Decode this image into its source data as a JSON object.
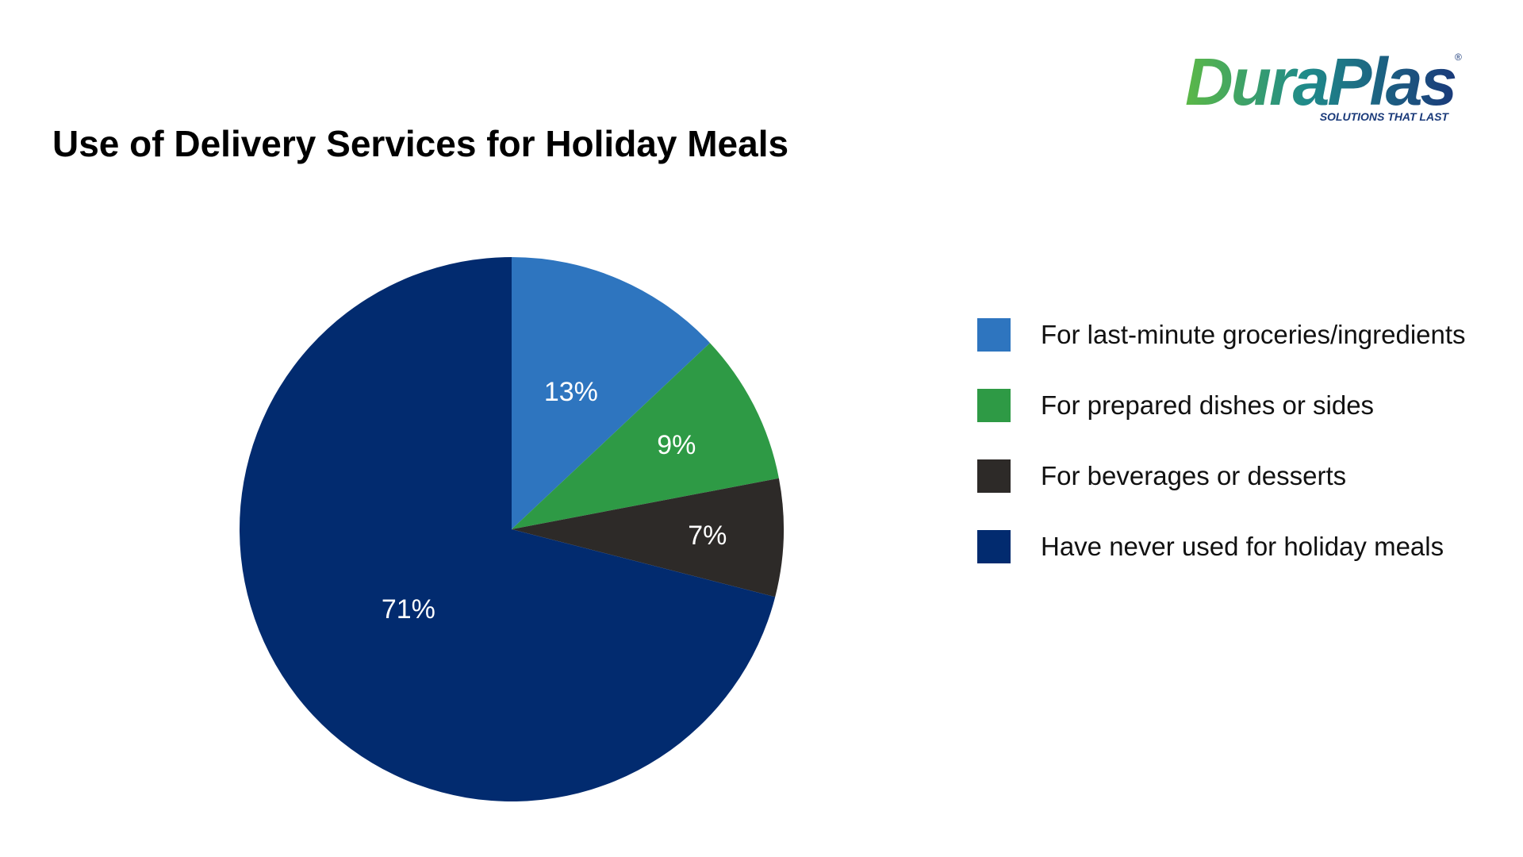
{
  "header": {
    "title": "Use of Delivery Services for Holiday Meals"
  },
  "logo": {
    "text": "DuraPlas",
    "tagline": "SOLUTIONS THAT LAST",
    "registered_mark": "®",
    "colors": {
      "green": "#5bb847",
      "teal": "#1f8a8a",
      "navy": "#1a3a7a"
    }
  },
  "chart_data": {
    "type": "pie",
    "title": "Use of Delivery Services for Holiday Meals",
    "legend_position": "right",
    "start_angle": "top",
    "direction": "clockwise",
    "slices": [
      {
        "label": "For last-minute groceries/ingredients",
        "value": 13,
        "display": "13%",
        "color": "#2e75bf"
      },
      {
        "label": "For prepared dishes or sides",
        "value": 9,
        "display": "9%",
        "color": "#2e9a45"
      },
      {
        "label": "For beverages or desserts",
        "value": 7,
        "display": "7%",
        "color": "#2d2a28"
      },
      {
        "label": "Have never used for holiday meals",
        "value": 71,
        "display": "71%",
        "color": "#022b6f"
      }
    ]
  }
}
